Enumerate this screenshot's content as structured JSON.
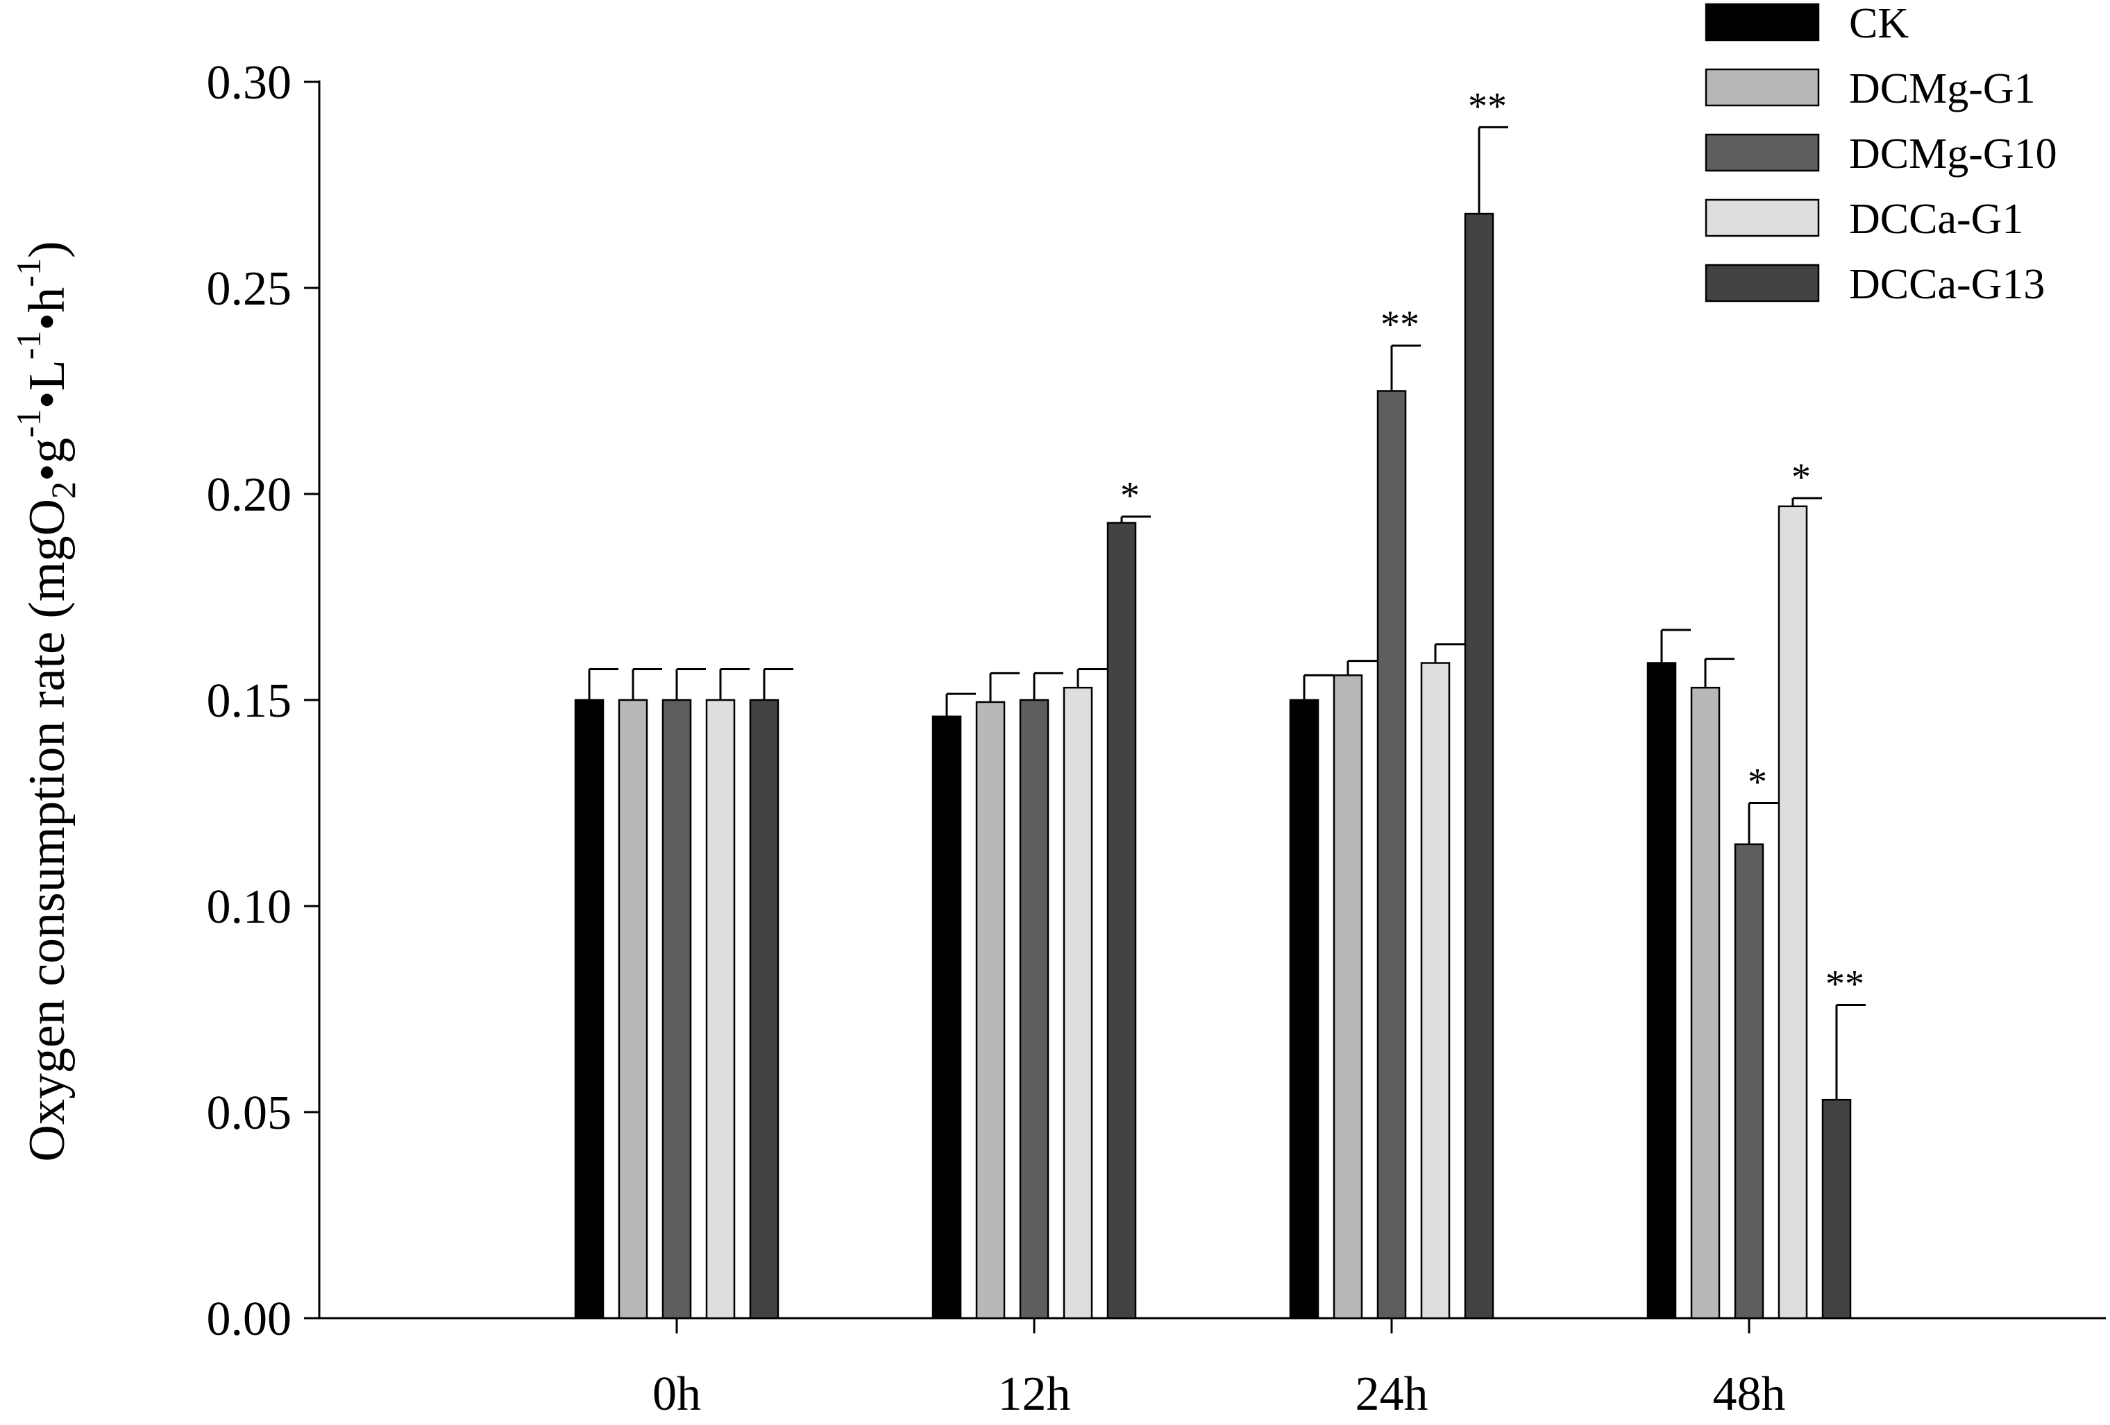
{
  "chart_data": {
    "type": "bar",
    "categories": [
      "0h",
      "12h",
      "24h",
      "48h"
    ],
    "ylim": [
      0,
      0.3
    ],
    "yticks": [
      "0.00",
      "0.05",
      "0.10",
      "0.15",
      "0.20",
      "0.25",
      "0.30"
    ],
    "ylabel": {
      "main": "Oxygen consumption rate (mgO",
      "sub2": "2",
      "part2": "•g",
      "sup1": "-1",
      "part3": "•L",
      "sup2": "-1",
      "part4": "•h",
      "sup3": "-1",
      "close": ")"
    },
    "legend_position": "top-right",
    "grid": false,
    "series": [
      {
        "name": "CK",
        "color": "#000000",
        "values": [
          0.15,
          0.146,
          0.15,
          0.159
        ],
        "errors": [
          0.0075,
          0.0055,
          0.006,
          0.008
        ],
        "significance": [
          "",
          "",
          "",
          ""
        ]
      },
      {
        "name": "DCMg-G1",
        "color": "#b8b8b8",
        "values": [
          0.15,
          0.1495,
          0.156,
          0.153
        ],
        "errors": [
          0.0075,
          0.007,
          0.0035,
          0.007
        ],
        "significance": [
          "",
          "",
          "",
          ""
        ]
      },
      {
        "name": "DCMg-G10",
        "color": "#5e5e5e",
        "values": [
          0.15,
          0.15,
          0.225,
          0.115
        ],
        "errors": [
          0.0075,
          0.0065,
          0.011,
          0.01
        ],
        "significance": [
          "",
          "",
          "**",
          "*"
        ]
      },
      {
        "name": "DCCa-G1",
        "color": "#dedede",
        "values": [
          0.15,
          0.153,
          0.159,
          0.197
        ],
        "errors": [
          0.0075,
          0.0045,
          0.0045,
          0.002
        ],
        "significance": [
          "",
          "",
          "",
          "*"
        ]
      },
      {
        "name": "DCCa-G13",
        "color": "#434343",
        "values": [
          0.15,
          0.193,
          0.268,
          0.053
        ],
        "errors": [
          0.0075,
          0.0015,
          0.021,
          0.023
        ],
        "significance": [
          "",
          "*",
          "**",
          "**"
        ]
      }
    ]
  }
}
